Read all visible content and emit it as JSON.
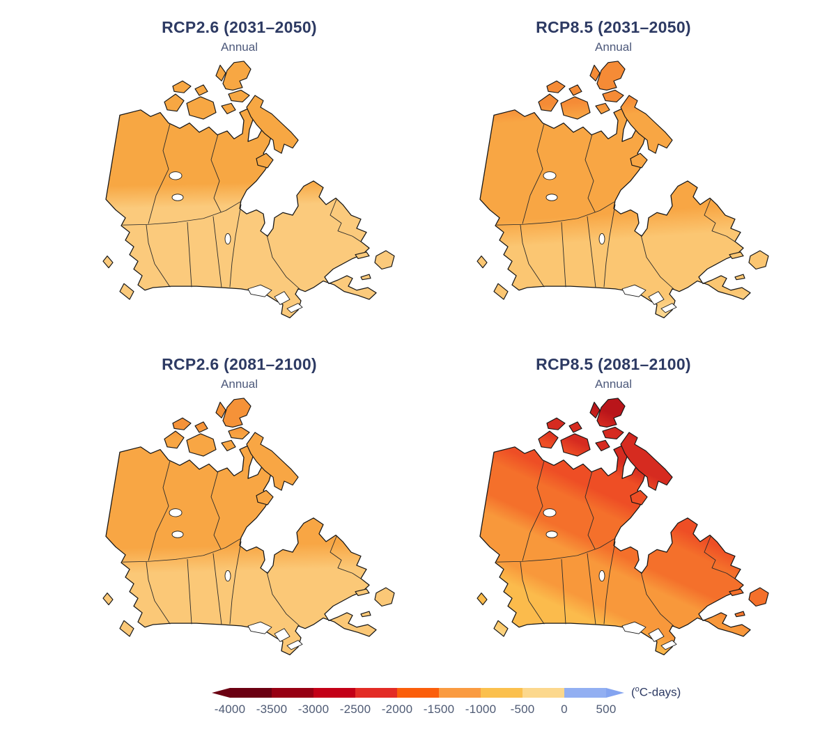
{
  "figure": {
    "colors": {
      "title": "#2D3A63",
      "subtitle": "#4C587A",
      "tick": "#4E5A74",
      "unit": "#2D3A63"
    },
    "panels": [
      {
        "id": "rcp26-2031-2050",
        "title": "RCP2.6 (2031–2050)",
        "subtitle": "Annual",
        "gradient": {
          "vector": [
            255,
            405,
            245,
            15
          ],
          "stops": [
            [
              0,
              "#FBCA7C"
            ],
            [
              0.47,
              "#FBCA7C"
            ],
            [
              0.56,
              "#F7A743"
            ],
            [
              1,
              "#F7A743"
            ]
          ]
        }
      },
      {
        "id": "rcp85-2031-2050",
        "title": "RCP8.5 (2031–2050)",
        "subtitle": "Annual",
        "gradient": {
          "vector": [
            265,
            405,
            235,
            5
          ],
          "stops": [
            [
              0,
              "#FCD68E"
            ],
            [
              0.05,
              "#FCD68E"
            ],
            [
              0.1,
              "#FBC672"
            ],
            [
              0.33,
              "#FBC672"
            ],
            [
              0.43,
              "#F8A644"
            ],
            [
              0.8,
              "#F8A644"
            ],
            [
              0.86,
              "#F58B36"
            ],
            [
              1,
              "#F58B36"
            ]
          ]
        }
      },
      {
        "id": "rcp26-2081-2100",
        "title": "RCP2.6 (2081–2100)",
        "subtitle": "Annual",
        "gradient": {
          "vector": [
            255,
            405,
            245,
            15
          ],
          "stops": [
            [
              0,
              "#FBC877"
            ],
            [
              0.36,
              "#FBC877"
            ],
            [
              0.46,
              "#F8A644"
            ],
            [
              0.88,
              "#F8A644"
            ],
            [
              0.93,
              "#F59238"
            ],
            [
              1,
              "#F59238"
            ]
          ]
        }
      },
      {
        "id": "rcp85-2081-2100",
        "title": "RCP8.5 (2081–2100)",
        "subtitle": "Annual",
        "gradient": {
          "vector": [
            130,
            415,
            330,
            5
          ],
          "stops": [
            [
              0,
              "#FCD584"
            ],
            [
              0.07,
              "#FCD584"
            ],
            [
              0.12,
              "#FBBB4C"
            ],
            [
              0.23,
              "#FBBB4C"
            ],
            [
              0.29,
              "#F8983B"
            ],
            [
              0.41,
              "#F8983B"
            ],
            [
              0.47,
              "#F4702B"
            ],
            [
              0.57,
              "#F4702B"
            ],
            [
              0.63,
              "#EE4E25"
            ],
            [
              0.7,
              "#EE4E25"
            ],
            [
              0.75,
              "#D62B20"
            ],
            [
              0.83,
              "#D62B20"
            ],
            [
              0.88,
              "#B9151A"
            ],
            [
              0.94,
              "#B9151A"
            ],
            [
              0.97,
              "#990E13"
            ],
            [
              1,
              "#990E13"
            ]
          ]
        }
      }
    ],
    "colorbar": {
      "ticks": [
        "-4000",
        "-3500",
        "-3000",
        "-2500",
        "-2000",
        "-1500",
        "-1000",
        "-500",
        "0",
        "500"
      ],
      "segments": [
        "#6B0012",
        "#970013",
        "#C30017",
        "#E32C26",
        "#FB5E0B",
        "#FA9B41",
        "#FBC04D",
        "#FCD88D",
        "#92AFF2"
      ],
      "arrow_left_color": "#6B0012",
      "arrow_right_color": "#84A4F0",
      "unit_prefix": "(",
      "unit_sup": "o",
      "unit_suffix": "C-days)"
    }
  },
  "chart_data": {
    "type": "heatmap",
    "unit": "°C-days",
    "colorbar_ticks": [
      -4000,
      -3500,
      -3000,
      -2500,
      -2000,
      -1500,
      -1000,
      -500,
      0,
      500
    ],
    "legend_position": "bottom",
    "panels": [
      {
        "title": "RCP2.6 (2031–2050)",
        "scenario": "RCP2.6",
        "period": "2031–2050",
        "season": "Annual",
        "approx_value_range_C_days": [
          -1500,
          -500
        ]
      },
      {
        "title": "RCP8.5 (2031–2050)",
        "scenario": "RCP8.5",
        "period": "2031–2050",
        "season": "Annual",
        "approx_value_range_C_days": [
          -2000,
          -500
        ]
      },
      {
        "title": "RCP2.6 (2081–2100)",
        "scenario": "RCP2.6",
        "period": "2081–2100",
        "season": "Annual",
        "approx_value_range_C_days": [
          -2000,
          -500
        ]
      },
      {
        "title": "RCP8.5 (2081–2100)",
        "scenario": "RCP8.5",
        "period": "2081–2100",
        "season": "Annual",
        "approx_value_range_C_days": [
          -4000,
          -500
        ]
      }
    ]
  }
}
